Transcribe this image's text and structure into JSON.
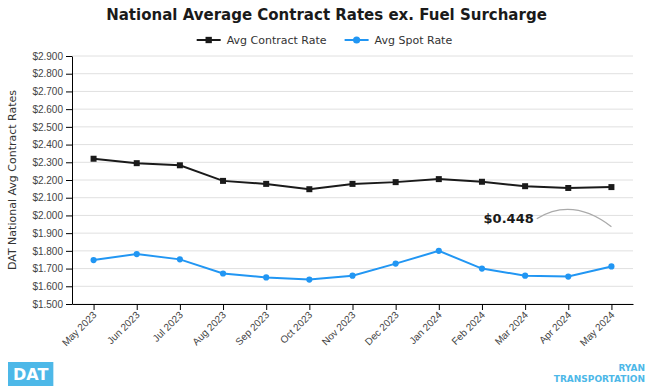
{
  "chart_data": {
    "type": "line",
    "title": "National Average Contract Rates ex. Fuel Surcharge",
    "y_label": "DAT National Avg Contract Rates",
    "categories": [
      "May 2023",
      "Jun 2023",
      "Jul 2023",
      "Aug 2023",
      "Sep 2023",
      "Oct 2023",
      "Nov 2023",
      "Dec 2023",
      "Jan 2024",
      "Feb 2024",
      "Mar 2024",
      "Apr 2024",
      "May 2024"
    ],
    "series": [
      {
        "name": "Avg Contract Rate",
        "color": "#1a1a1a",
        "marker": "square",
        "values": [
          2.32,
          2.295,
          2.283,
          2.195,
          2.178,
          2.148,
          2.178,
          2.188,
          2.205,
          2.19,
          2.165,
          2.155,
          2.16
        ]
      },
      {
        "name": "Avg Spot Rate",
        "color": "#2196F3",
        "marker": "circle",
        "values": [
          1.748,
          1.782,
          1.752,
          1.672,
          1.65,
          1.638,
          1.66,
          1.728,
          1.8,
          1.7,
          1.66,
          1.655,
          1.712
        ]
      }
    ],
    "ylim": [
      1.5,
      2.9
    ],
    "yticks": [
      {
        "value": 1.5,
        "label": "$1.500"
      },
      {
        "value": 1.6,
        "label": "$1.600"
      },
      {
        "value": 1.7,
        "label": "$1.700"
      },
      {
        "value": 1.8,
        "label": "$1.800"
      },
      {
        "value": 1.9,
        "label": "$1.900"
      },
      {
        "value": 2.0,
        "label": "$2.000"
      },
      {
        "value": 2.1,
        "label": "$2.100"
      },
      {
        "value": 2.2,
        "label": "$2.200"
      },
      {
        "value": 2.3,
        "label": "$2.300"
      },
      {
        "value": 2.4,
        "label": "$2.400"
      },
      {
        "value": 2.5,
        "label": "$2.500"
      },
      {
        "value": 2.6,
        "label": "$2.600"
      },
      {
        "value": 2.7,
        "label": "$2.700"
      },
      {
        "value": 2.8,
        "label": "$2.800"
      },
      {
        "value": 2.9,
        "label": "$2.900"
      }
    ],
    "grid": true,
    "legend": "top",
    "annotations": [
      {
        "text": "$0.448"
      },
      {
        "text": "DAT",
        "color": "#4db8e8"
      },
      {
        "text": "RYAN\nTRANSPORTATION",
        "color": "#4db8e8"
      }
    ]
  }
}
